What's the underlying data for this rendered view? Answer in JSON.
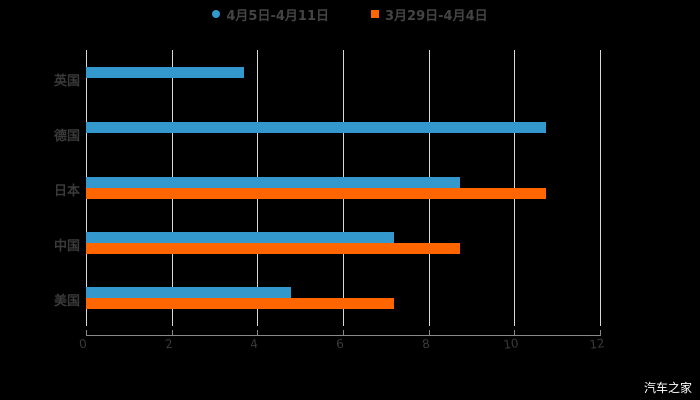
{
  "chart_data": {
    "type": "bar",
    "orientation": "horizontal",
    "title": "",
    "categories": [
      "英国",
      "德国",
      "日本",
      "中国",
      "美国"
    ],
    "series": [
      {
        "name": "4月5日-4月11日",
        "color": "#3399cc",
        "values": [
          3.68,
          10.74,
          8.73,
          7.19,
          4.79
        ]
      },
      {
        "name": "3月29日-4月4日",
        "color": "#ff6600",
        "values": [
          null,
          null,
          10.74,
          8.73,
          7.19
        ]
      }
    ],
    "xlabel": "",
    "ylabel": "",
    "xlim": [
      0,
      12
    ],
    "xticks": [
      "0",
      "2",
      "4",
      "6",
      "8",
      "10",
      "12"
    ],
    "grid": true,
    "legend_position": "top"
  },
  "legend": {
    "series1": "4月5日-4月11日",
    "series2": "3月29日-4月4日"
  },
  "categories": [
    "英国",
    "德国",
    "日本",
    "中国",
    "美国"
  ],
  "ticks": [
    "0",
    "2",
    "4",
    "6",
    "8",
    "10",
    "12"
  ],
  "watermark": "汽车之家",
  "colors": {
    "series1": "#3399cc",
    "series2": "#ff6600",
    "background": "#000000"
  }
}
